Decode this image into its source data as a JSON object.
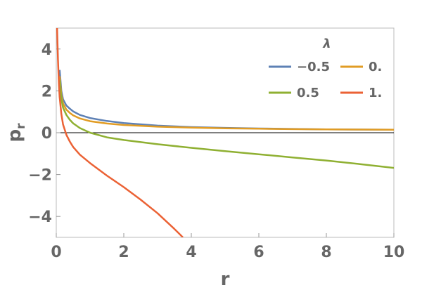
{
  "chart_data": {
    "type": "line",
    "xlabel": "r",
    "ylabel_main": "p",
    "ylabel_sub": "r",
    "xlim": [
      0,
      10
    ],
    "ylim": [
      -5,
      5
    ],
    "x_ticks": [
      0,
      2,
      4,
      6,
      8,
      10
    ],
    "y_ticks": [
      -4,
      -2,
      0,
      2,
      4
    ],
    "x_tick_labels": [
      "0",
      "2",
      "4",
      "6",
      "8",
      "10"
    ],
    "y_tick_labels": [
      "−4",
      "−2",
      "0",
      "2",
      "4"
    ],
    "frame": true,
    "grid": false,
    "legend": {
      "title": "λ",
      "placement": "top-right"
    },
    "series": [
      {
        "name": "−0.5",
        "color": "#5e81b5",
        "x": [
          0.1,
          0.15,
          0.2,
          0.3,
          0.4,
          0.5,
          0.7,
          1.0,
          1.5,
          2,
          3,
          4,
          5,
          6,
          7,
          8,
          9,
          10
        ],
        "y": [
          3.0,
          2.0,
          1.6,
          1.3,
          1.15,
          1.02,
          0.85,
          0.7,
          0.56,
          0.46,
          0.34,
          0.27,
          0.23,
          0.2,
          0.18,
          0.16,
          0.15,
          0.14
        ]
      },
      {
        "name": "0.",
        "color": "#e19c24",
        "x": [
          0.1,
          0.15,
          0.2,
          0.3,
          0.4,
          0.5,
          0.7,
          1.0,
          1.5,
          2,
          3,
          4,
          5,
          6,
          7,
          8,
          9,
          10
        ],
        "y": [
          2.7,
          1.8,
          1.4,
          1.1,
          0.95,
          0.83,
          0.68,
          0.55,
          0.44,
          0.37,
          0.29,
          0.24,
          0.21,
          0.19,
          0.17,
          0.16,
          0.15,
          0.14
        ]
      },
      {
        "name": "0.5",
        "color": "#8fb032",
        "x": [
          0.1,
          0.15,
          0.2,
          0.3,
          0.4,
          0.5,
          0.7,
          1.0,
          1.5,
          2,
          3,
          4,
          5,
          6,
          7,
          8,
          9,
          10
        ],
        "y": [
          2.5,
          1.6,
          1.2,
          0.85,
          0.62,
          0.45,
          0.22,
          0.0,
          -0.22,
          -0.35,
          -0.55,
          -0.72,
          -0.88,
          -1.03,
          -1.18,
          -1.33,
          -1.5,
          -1.68
        ]
      },
      {
        "name": "1.",
        "color": "#eb6235",
        "x": [
          0.02,
          0.05,
          0.08,
          0.1,
          0.15,
          0.2,
          0.3,
          0.4,
          0.5,
          0.7,
          1.0,
          1.5,
          2.0,
          2.5,
          3.0,
          3.5,
          3.75
        ],
        "y": [
          5.2,
          3.5,
          2.3,
          1.7,
          0.9,
          0.4,
          -0.1,
          -0.42,
          -0.68,
          -1.05,
          -1.45,
          -2.05,
          -2.6,
          -3.2,
          -3.85,
          -4.6,
          -5.0
        ]
      }
    ]
  }
}
